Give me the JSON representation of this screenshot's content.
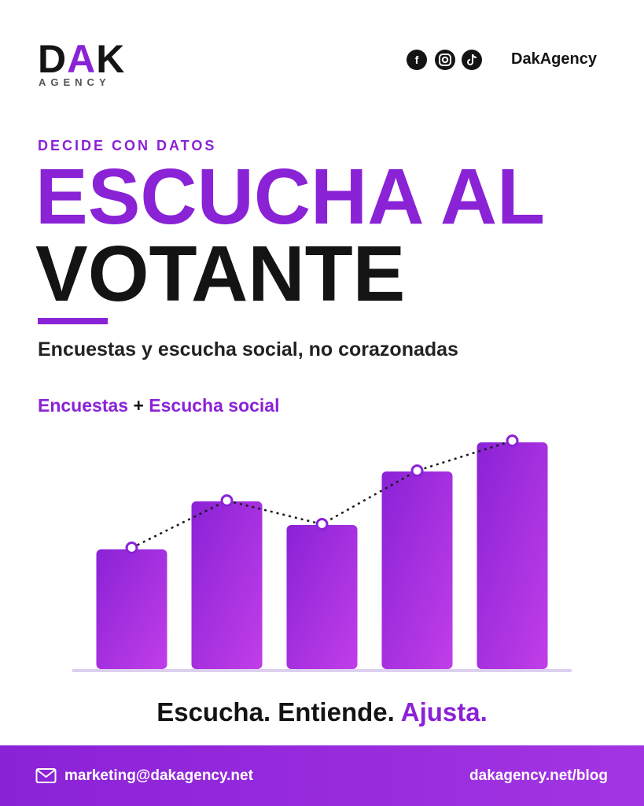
{
  "header": {
    "logo": [
      "D",
      "A",
      "K"
    ],
    "logo_sub": "AGENCY",
    "handle": "DakAgency"
  },
  "kicker": "DECIDE CON DATOS",
  "title_line1": "ESCUCHA AL",
  "title_line2": "VOTANTE",
  "subtitle": "Encuestas y escucha social, no corazonadas",
  "chart_data": {
    "type": "bar",
    "legend_joiner": "+",
    "categories": [
      null,
      null,
      null,
      null,
      null
    ],
    "ylim": [
      0,
      300
    ],
    "series": [
      {
        "name": "Encuestas",
        "type": "bar",
        "color": "#8a22d6",
        "values": [
          152,
          213,
          183,
          251,
          288
        ]
      },
      {
        "name": "Escucha social",
        "type": "line",
        "color": "#1a1a1a",
        "values": [
          154,
          214,
          184,
          252,
          290
        ]
      }
    ]
  },
  "tagline": [
    "Escucha. Entiende.",
    "Ajusta."
  ],
  "footer": {
    "email": "marketing@dakagency.net",
    "url": "dakagency.net/blog"
  }
}
